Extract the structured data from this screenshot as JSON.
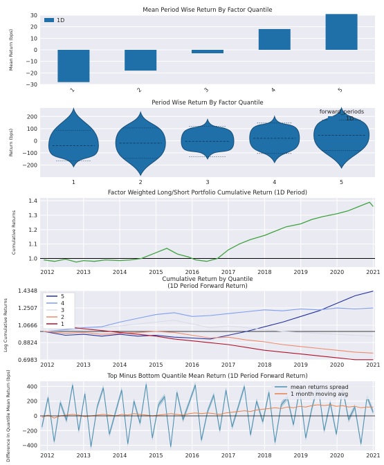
{
  "colors": {
    "panel_bg": "#eaeaf2",
    "blue": "#1f6fa8",
    "green": "#3ea33e",
    "baseline": "#000000",
    "spread": "#4a90b0",
    "spread_band": "#9bbccd",
    "moving_avg": "#e8804a"
  },
  "chart_data": [
    {
      "type": "bar",
      "title": "Mean Period Wise Return By Factor Quantile",
      "ylabel": "Mean Return (bps)",
      "xlabel": "",
      "categories": [
        "1",
        "2",
        "3",
        "4",
        "5"
      ],
      "series": [
        {
          "name": "1D",
          "values": [
            -28,
            -18,
            -3,
            18,
            31
          ]
        }
      ],
      "ylim": [
        -30,
        30
      ],
      "yticks": [
        "30",
        "20",
        "10",
        "0",
        "−10",
        "−20",
        "−30"
      ],
      "legend": "top-left",
      "grid": true
    },
    {
      "type": "violin",
      "title": "Period Wise Return By Factor Quantile",
      "ylabel": "Return (bps)",
      "categories": [
        "1",
        "2",
        "3",
        "4",
        "5"
      ],
      "legend_title": "forward_periods",
      "series": [
        {
          "name": "1D"
        }
      ],
      "medians": [
        -40,
        -20,
        -5,
        20,
        45
      ],
      "ranges": [
        [
          -215,
          265
        ],
        [
          -285,
          235
        ],
        [
          -150,
          175
        ],
        [
          -180,
          200
        ],
        [
          -225,
          270
        ]
      ],
      "ylim": [
        -300,
        270
      ],
      "yticks": [
        "200",
        "100",
        "0",
        "−100",
        "−200"
      ],
      "legend": "top-right",
      "grid": true
    },
    {
      "type": "line",
      "title": "Factor Weighted Long/Short Portfolio Cumulative Return (1D Period)",
      "ylabel": "Cumulative Returns",
      "x": [
        2011.9,
        2012.2,
        2012.5,
        2012.8,
        2013.0,
        2013.3,
        2013.6,
        2014.0,
        2014.3,
        2014.6,
        2015.0,
        2015.3,
        2015.6,
        2015.9,
        2016.1,
        2016.4,
        2016.7,
        2017.0,
        2017.3,
        2017.6,
        2018.0,
        2018.3,
        2018.6,
        2019.0,
        2019.3,
        2019.6,
        2020.0,
        2020.3,
        2020.6,
        2020.9,
        2021.0
      ],
      "y": [
        0.99,
        0.98,
        0.995,
        0.975,
        0.985,
        0.98,
        0.99,
        0.985,
        0.99,
        1.0,
        1.04,
        1.07,
        1.03,
        1.01,
        0.99,
        0.98,
        1.0,
        1.06,
        1.1,
        1.13,
        1.16,
        1.19,
        1.22,
        1.24,
        1.27,
        1.29,
        1.31,
        1.33,
        1.36,
        1.39,
        1.36
      ],
      "baseline": 1.0,
      "ylim": [
        0.94,
        1.42
      ],
      "yticks": [
        "1.4",
        "1.3",
        "1.2",
        "1.1",
        "1.0"
      ],
      "xticks": [
        "2012",
        "2013",
        "2014",
        "2015",
        "2016",
        "2017",
        "2018",
        "2019",
        "2020",
        "2021"
      ],
      "grid": true
    },
    {
      "type": "line",
      "title": "Cumulative Return by Quantile",
      "subtitle": "(1D Period Forward Return)",
      "ylabel": "Log Cumulative Returns",
      "x": [
        2011.9,
        2012.5,
        2013.0,
        2013.5,
        2014.0,
        2014.5,
        2015.0,
        2015.5,
        2016.0,
        2016.5,
        2017.0,
        2017.5,
        2018.0,
        2018.5,
        2019.0,
        2019.5,
        2020.0,
        2020.5,
        2021.0
      ],
      "series": [
        {
          "name": "5",
          "color": "#2230a0",
          "values": [
            1.0,
            0.96,
            0.97,
            0.95,
            0.97,
            0.95,
            0.96,
            0.94,
            0.93,
            0.92,
            0.96,
            1.0,
            1.05,
            1.1,
            1.16,
            1.22,
            1.3,
            1.38,
            1.43
          ]
        },
        {
          "name": "4",
          "color": "#7f9ef0",
          "values": [
            1.0,
            1.02,
            1.04,
            1.05,
            1.1,
            1.14,
            1.18,
            1.2,
            1.16,
            1.17,
            1.19,
            1.21,
            1.23,
            1.22,
            1.24,
            1.23,
            1.25,
            1.24,
            1.25
          ]
        },
        {
          "name": "3",
          "color": "#d9dde8",
          "values": [
            1.0,
            1.01,
            1.02,
            1.04,
            1.06,
            1.08,
            1.1,
            1.12,
            1.08,
            1.04,
            1.06,
            1.04,
            1.02,
            1.0,
            0.99,
            0.98,
            0.97,
            0.96,
            0.95
          ]
        },
        {
          "name": "2",
          "color": "#f08a6a",
          "values": [
            1.0,
            0.98,
            0.99,
            0.97,
            0.98,
            0.99,
            1.0,
            0.99,
            0.96,
            0.93,
            0.94,
            0.91,
            0.89,
            0.86,
            0.84,
            0.82,
            0.8,
            0.78,
            0.77
          ]
        },
        {
          "name": "1",
          "color": "#b0122a",
          "values": [
            1.04,
            1.05,
            1.03,
            1.01,
            0.99,
            0.97,
            0.95,
            0.92,
            0.9,
            0.88,
            0.86,
            0.83,
            0.8,
            0.78,
            0.76,
            0.74,
            0.72,
            0.7,
            0.7
          ]
        }
      ],
      "baseline": 1.0,
      "ylim": [
        0.6983,
        1.4348
      ],
      "yticks": [
        "1.4348",
        "1.2507",
        "1.0666",
        "0.8824",
        "0.6983"
      ],
      "xticks": [
        "2012",
        "2013",
        "2014",
        "2015",
        "2016",
        "2017",
        "2018",
        "2019",
        "2020",
        "2021"
      ],
      "legend": "top-left",
      "grid": true
    },
    {
      "type": "line",
      "title": "Top Minus Bottom Quantile Mean Return (1D Period Forward Return)",
      "ylabel": "Difference In Quantile Mean Return (bps)",
      "series": [
        {
          "name": "mean returns spread",
          "values": [
            -150,
            250,
            -350,
            180,
            -60,
            420,
            -200,
            300,
            -420,
            120,
            380,
            -250,
            50,
            350,
            -380,
            200,
            -100,
            430,
            -300,
            150,
            260,
            -420,
            320,
            -50,
            180,
            420,
            -330,
            60,
            280,
            -200,
            350,
            -150,
            120,
            400,
            -260,
            200,
            -80,
            320,
            -360,
            150,
            250,
            -120,
            360,
            -300,
            100,
            420,
            -200,
            180,
            -250,
            380,
            -50,
            120,
            -380,
            260,
            50
          ]
        },
        {
          "name": "1 month moving avg",
          "values": [
            -20,
            10,
            -30,
            0,
            10,
            20,
            10,
            -10,
            0,
            10,
            20,
            10,
            0,
            20,
            10,
            30,
            20,
            10,
            0,
            10,
            20,
            30,
            20,
            10,
            30,
            40,
            30,
            40,
            30,
            20,
            40,
            50,
            60,
            70,
            60,
            80,
            90,
            100,
            110,
            100,
            120,
            110,
            130,
            120,
            140,
            150,
            140,
            150,
            130,
            140,
            120,
            130,
            110,
            120,
            120
          ]
        }
      ],
      "ylim": [
        -470,
        470
      ],
      "yticks": [
        "400",
        "200",
        "0",
        "−200",
        "−400"
      ],
      "xticks": [
        "2012",
        "2013",
        "2014",
        "2015",
        "2016",
        "2017",
        "2018",
        "2019",
        "2020",
        "2021"
      ],
      "legend": "top-right",
      "grid": true
    }
  ]
}
